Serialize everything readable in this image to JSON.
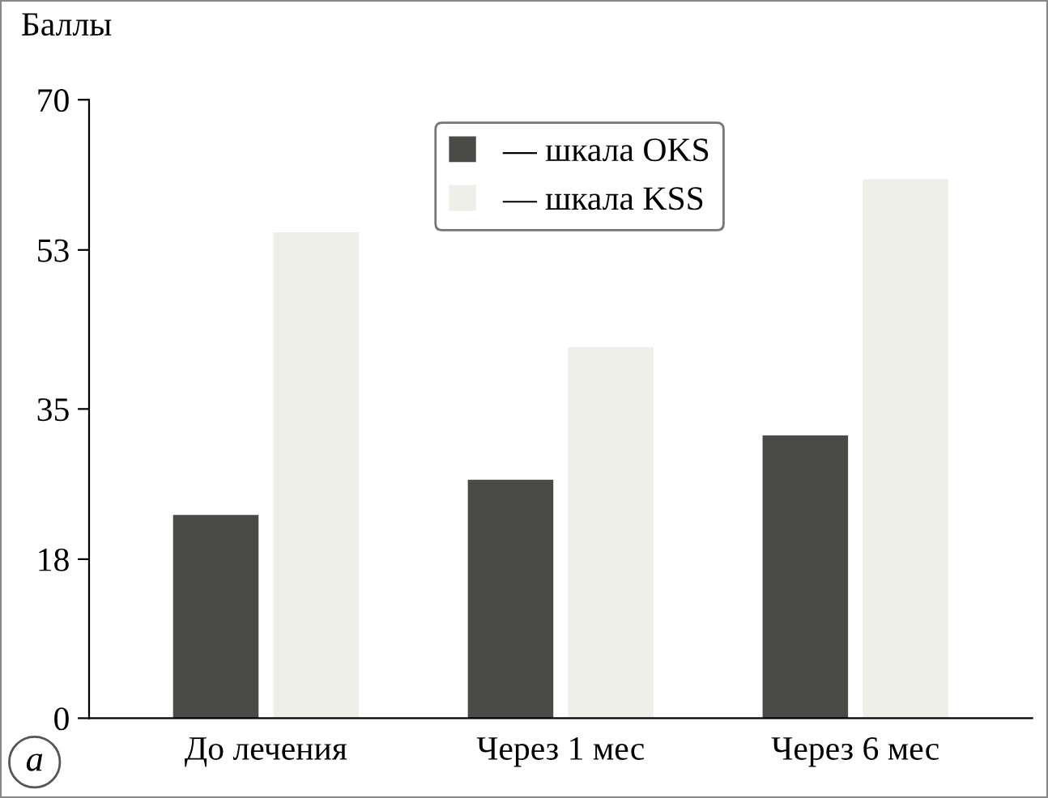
{
  "chart_data": {
    "type": "bar",
    "ylabel": "Баллы",
    "categories": [
      "До лечения",
      "Через 1 мес",
      "Через 6 мес"
    ],
    "series": [
      {
        "name": "— шкала OKS",
        "color": "#4a4a47",
        "values": [
          23,
          27,
          32
        ]
      },
      {
        "name": "— шкала KSS",
        "color": "#efefe9",
        "values": [
          55,
          42,
          61
        ]
      }
    ],
    "ylim": [
      0,
      70
    ],
    "yticks": [
      0,
      18,
      35,
      53,
      70
    ],
    "legend": "top",
    "grid": false,
    "annotations": [
      "a"
    ]
  }
}
